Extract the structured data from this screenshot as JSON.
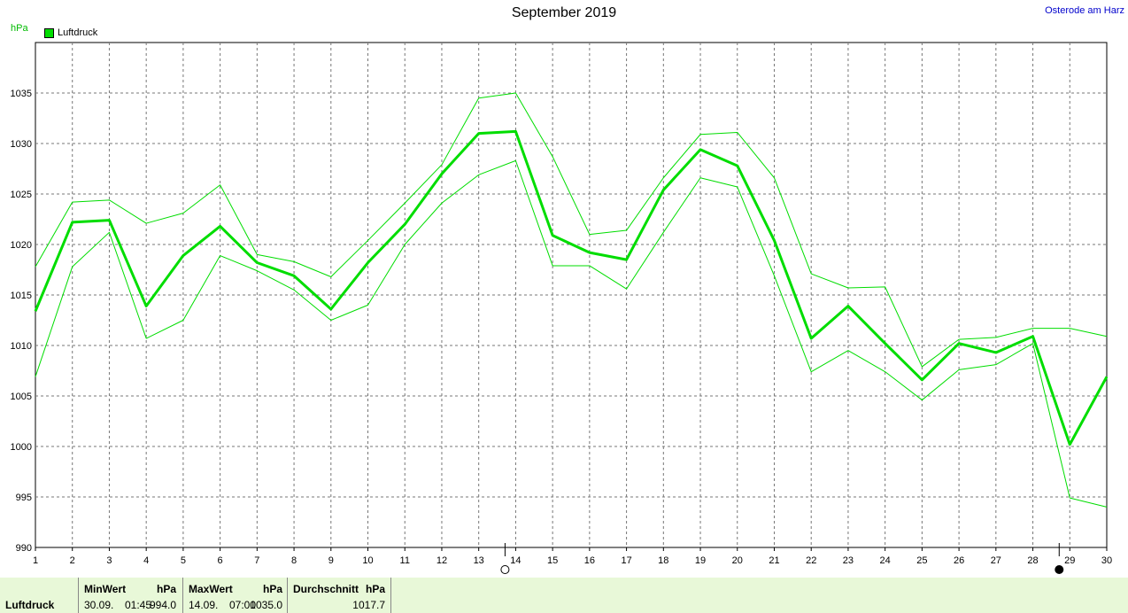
{
  "title": "September 2019",
  "location": "Osterode am Harz",
  "y_unit": "hPa",
  "legend_label": "Luftdruck",
  "colors": {
    "main": "#00dd00",
    "band": "#00dd00",
    "grid": "#777777"
  },
  "chart_data": {
    "type": "line",
    "x": [
      1,
      2,
      3,
      4,
      5,
      6,
      7,
      8,
      9,
      10,
      11,
      12,
      13,
      14,
      15,
      16,
      17,
      18,
      19,
      20,
      21,
      22,
      23,
      24,
      25,
      26,
      27,
      28,
      29,
      30
    ],
    "ylim": [
      990,
      1040
    ],
    "yticks": [
      990,
      995,
      1000,
      1005,
      1010,
      1015,
      1020,
      1025,
      1030,
      1035
    ],
    "ylabel": "hPa",
    "grid": true,
    "legend_position": "top-left",
    "series": [
      {
        "name": "Luftdruck",
        "values": [
          1013.4,
          1022.2,
          1022.4,
          1013.9,
          1018.9,
          1021.8,
          1018.2,
          1016.9,
          1013.6,
          1018.2,
          1022.0,
          1027.0,
          1031.0,
          1031.2,
          1020.9,
          1019.2,
          1018.5,
          1025.4,
          1029.4,
          1027.8,
          1020.4,
          1010.7,
          1013.9,
          1010.2,
          1006.6,
          1010.2,
          1009.3,
          1010.9,
          1000.2,
          1006.9
        ]
      },
      {
        "values": [
          1017.8,
          1024.2,
          1024.4,
          1022.1,
          1023.1,
          1025.9,
          1019.0,
          1018.3,
          1016.8,
          1020.4,
          1024.1,
          1027.9,
          1034.5,
          1035.0,
          1028.7,
          1021.0,
          1021.4,
          1026.6,
          1030.9,
          1031.1,
          1026.6,
          1017.1,
          1015.7,
          1015.8,
          1007.9,
          1010.6,
          1010.8,
          1011.7,
          1011.7,
          1010.9
        ]
      },
      {
        "values": [
          1006.9,
          1017.8,
          1021.2,
          1010.7,
          1012.5,
          1018.9,
          1017.4,
          1015.5,
          1012.5,
          1014.0,
          1020.0,
          1024.1,
          1026.9,
          1028.3,
          1017.9,
          1017.9,
          1015.6,
          1021.2,
          1026.6,
          1025.7,
          1016.9,
          1007.4,
          1009.5,
          1007.4,
          1004.6,
          1007.6,
          1008.1,
          1010.2,
          994.9,
          994.0
        ]
      }
    ]
  },
  "markers": [
    {
      "x": 14,
      "symbol": "full-moon-icon"
    },
    {
      "x": 29,
      "symbol": "new-moon-icon"
    }
  ],
  "footer": {
    "label": "Luftdruck",
    "min": {
      "header": "MinWert",
      "unit": "hPa",
      "date": "30.09.",
      "time": "01:45",
      "value": "994.0"
    },
    "max": {
      "header": "MaxWert",
      "unit": "hPa",
      "date": "14.09.",
      "time": "07:00",
      "value": "1035.0"
    },
    "avg": {
      "header": "Durchschnitt",
      "unit": "hPa",
      "value": "1017.7"
    }
  }
}
